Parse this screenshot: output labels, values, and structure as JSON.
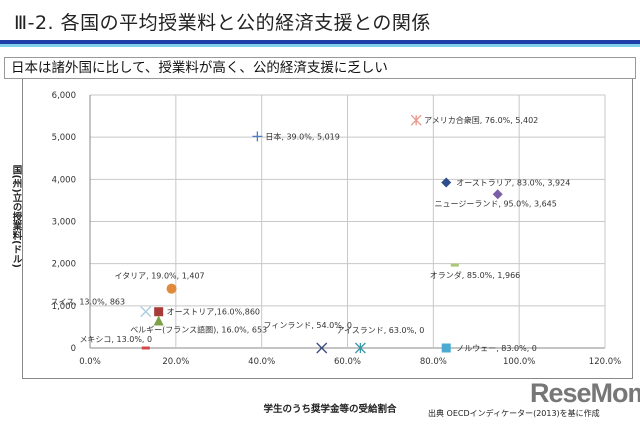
{
  "title": "Ⅲ-2. 各国の平均授業料と公的経済支援との関係",
  "subtitle": "日本は諸外国に比して、授業料が高く、公的経済支援に乏しい",
  "source": "出典 OECDインディケーター(2013)を基に作成",
  "logo": "ReseMom",
  "chart_data": {
    "type": "scatter",
    "xlabel": "学生のうち奨学金等の受給割合",
    "ylabel": "国(州)立の授業料(ドル)",
    "xlim": [
      0,
      120
    ],
    "ylim": [
      0,
      6000
    ],
    "xticks": [
      "0.0%",
      "20.0%",
      "40.0%",
      "60.0%",
      "80.0%",
      "100.0%",
      "120.0%"
    ],
    "yticks": [
      "0",
      "1,000",
      "2,000",
      "3,000",
      "4,000",
      "5,000",
      "6,000"
    ],
    "grid": true,
    "points": [
      {
        "label": "日本, 39.0%, 5,019",
        "x": 39,
        "y": 5019,
        "marker": "plus",
        "color": "#4a7fc8"
      },
      {
        "label": "アメリカ合衆国, 76.0%, 5,402",
        "x": 76,
        "y": 5402,
        "marker": "asterisk",
        "color": "#e8958a"
      },
      {
        "label": "オーストラリア, 83.0%, 3,924",
        "x": 83,
        "y": 3924,
        "marker": "diamond",
        "color": "#2e4d8c"
      },
      {
        "label": "ニュージーランド, 95.0%, 3,645",
        "x": 95,
        "y": 3645,
        "marker": "diamond",
        "color": "#7b5ea8"
      },
      {
        "label": "オランダ, 85.0%, 1,966",
        "x": 85,
        "y": 1966,
        "marker": "dash",
        "color": "#a8c878"
      },
      {
        "label": "イタリア, 19.0%, 1,407",
        "x": 19,
        "y": 1407,
        "marker": "circle",
        "color": "#e08a3c"
      },
      {
        "label": "スイス, 13.0%, 863",
        "x": 13,
        "y": 863,
        "marker": "x",
        "color": "#a8cce0"
      },
      {
        "label": "オーストリア,16.0%,860",
        "x": 16,
        "y": 860,
        "marker": "square",
        "color": "#a83a3a"
      },
      {
        "label": "ベルギー(フランス語圏), 16.0%, 653",
        "x": 16,
        "y": 653,
        "marker": "triangle",
        "color": "#7ea04a"
      },
      {
        "label": "メキシコ, 13.0%, 0",
        "x": 13,
        "y": 0,
        "marker": "dash",
        "color": "#d04848"
      },
      {
        "label": "フィンランド, 54.0%, 0",
        "x": 54,
        "y": 0,
        "marker": "x",
        "color": "#3a4a7a"
      },
      {
        "label": "アイスランド, 63.0%, 0",
        "x": 63,
        "y": 0,
        "marker": "asterisk",
        "color": "#3a9aaa"
      },
      {
        "label": "ノルウェー, 83.0%, 0",
        "x": 83,
        "y": 0,
        "marker": "square",
        "color": "#4aaad0"
      }
    ]
  }
}
